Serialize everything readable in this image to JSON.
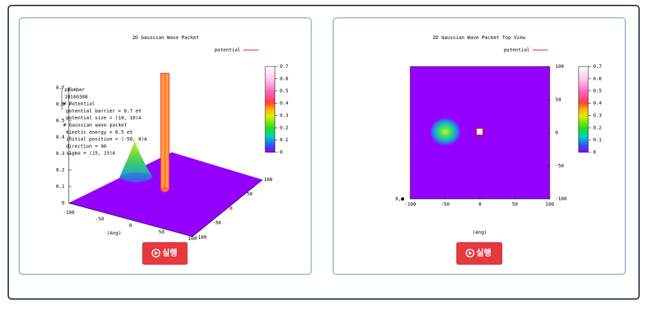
{
  "panels": [
    {
      "plot": {
        "title": "2D Gaussian Wave Packet",
        "legend": "potential",
        "colorbar_ticks": [
          "0.7",
          "0.6",
          "0.5",
          "0.4",
          "0.3",
          "0.2",
          "0.1",
          "0"
        ],
        "z_ticks": [
          "0.7",
          "0.6",
          "0.5",
          "0.4",
          "0.3",
          "0.2",
          "0.1",
          "0"
        ],
        "x_ticks": [
          "-100",
          "-50",
          "0",
          "50",
          "100"
        ],
        "y_ticks": [
          "100",
          "50",
          "0",
          "-50",
          "-100"
        ],
        "axis_label": "(Ang)",
        "notes": [
          "pbomber",
          "20160308",
          "# Potential",
          "potential barrier = 0.7 eV",
          "potential size = (10, 10)A",
          "# Gaussian wave packet",
          "kinetic energy = 0.5 eV",
          "initial position = (-50, 0)A",
          "direction = 90",
          "sigma = (15, 15)A"
        ]
      },
      "button": "실행"
    },
    {
      "plot": {
        "title": "2D Gaussian Wave Packet Top View",
        "legend": "potential",
        "colorbar_ticks": [
          "0.7",
          "0.6",
          "0.5",
          "0.4",
          "0.3",
          "0.2",
          "0.1",
          "0"
        ],
        "x_ticks": [
          "-100",
          "-50",
          "0",
          "50",
          "100"
        ],
        "y_ticks": [
          "100",
          "50",
          "0",
          "-50",
          "-100"
        ],
        "corner": "0,■",
        "axis_label": "(Ang)"
      },
      "button": "실행"
    }
  ]
}
